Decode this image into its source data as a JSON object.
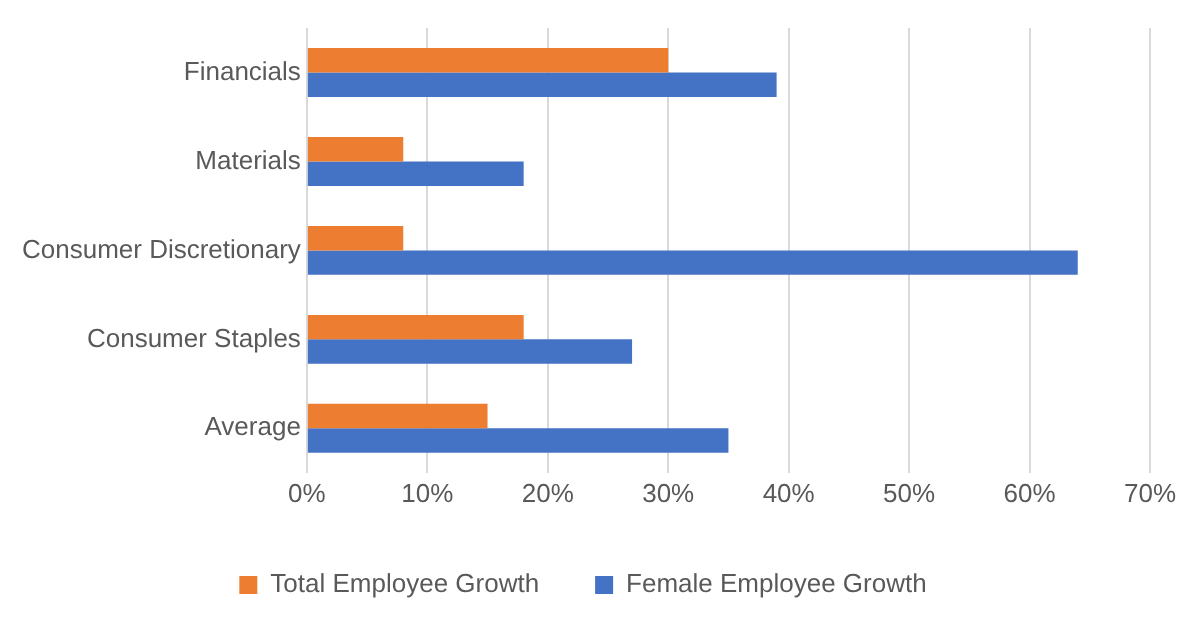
{
  "chart_data": {
    "type": "bar",
    "orientation": "horizontal",
    "categories": [
      "Financials",
      "Materials",
      "Consumer Discretionary",
      "Consumer Staples",
      "Average"
    ],
    "series": [
      {
        "name": "Total Employee Growth",
        "color": "#ed7d31",
        "values": [
          30,
          8,
          8,
          18,
          15
        ]
      },
      {
        "name": "Female Employee Growth",
        "color": "#4472c4",
        "values": [
          39,
          18,
          64,
          27,
          35
        ]
      }
    ],
    "xlim": [
      0,
      70
    ],
    "xticks": [
      {
        "value": 0,
        "label": "0%"
      },
      {
        "value": 10,
        "label": "10%"
      },
      {
        "value": 20,
        "label": "20%"
      },
      {
        "value": 30,
        "label": "30%"
      },
      {
        "value": 40,
        "label": "40%"
      },
      {
        "value": 50,
        "label": "50%"
      },
      {
        "value": 60,
        "label": "60%"
      },
      {
        "value": 70,
        "label": "70%"
      }
    ],
    "grid": "x",
    "legend": "bottom"
  }
}
